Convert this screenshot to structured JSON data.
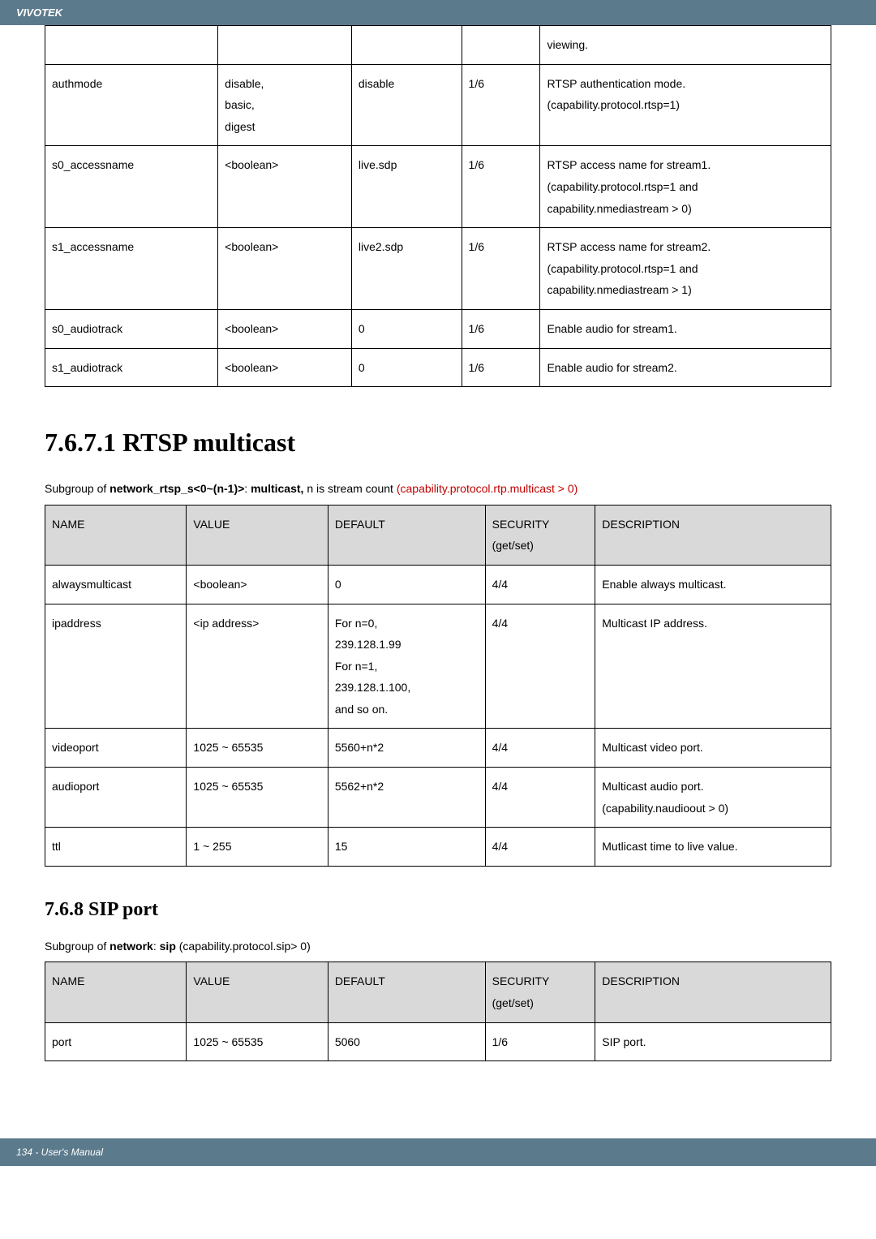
{
  "header": {
    "brand": "VIVOTEK"
  },
  "footer": {
    "text": "134 - User's Manual"
  },
  "table1": {
    "rows": [
      {
        "c1": "",
        "c2": "",
        "c3": "",
        "c4": "",
        "c5": "viewing."
      },
      {
        "c1": "authmode",
        "c2": "disable,\nbasic,\ndigest",
        "c3": "disable",
        "c4": "1/6",
        "c5": "RTSP authentication mode.\n(capability.protocol.rtsp=1)"
      },
      {
        "c1": "s0_accessname",
        "c2": "<boolean>",
        "c3": "live.sdp",
        "c4": "1/6",
        "c5": "RTSP access name for stream1.\n(capability.protocol.rtsp=1 and\ncapability.nmediastream > 0)"
      },
      {
        "c1": "s1_accessname",
        "c2": "<boolean>",
        "c3": "live2.sdp",
        "c4": "1/6",
        "c5": "RTSP access name for stream2.\n(capability.protocol.rtsp=1 and\ncapability.nmediastream > 1)"
      },
      {
        "c1": "s0_audiotrack",
        "c2": "<boolean>",
        "c3": "0",
        "c4": "1/6",
        "c5": "Enable audio for stream1."
      },
      {
        "c1": "s1_audiotrack",
        "c2": "<boolean>",
        "c3": "0",
        "c4": "1/6",
        "c5": "Enable audio for stream2."
      }
    ]
  },
  "section7671": {
    "heading": "7.6.7.1 RTSP multicast",
    "subgroup_pre": "Subgroup of ",
    "subgroup_bold": "network_rtsp_s<0~(n-1)>",
    "subgroup_mid": ": ",
    "subgroup_bold2": "multicast, ",
    "subgroup_post": "n is stream count ",
    "subgroup_red": "(capability.protocol.rtp.multicast > 0)"
  },
  "table2": {
    "headers": {
      "h1": "NAME",
      "h2": "VALUE",
      "h3": "DEFAULT",
      "h4": "SECURITY\n(get/set)",
      "h5": "DESCRIPTION"
    },
    "rows": [
      {
        "c1": "alwaysmulticast",
        "c2": "<boolean>",
        "c3": "0",
        "c4": "4/4",
        "c5": "Enable always multicast."
      },
      {
        "c1": "ipaddress",
        "c2": "<ip address>",
        "c3": "For n=0,\n239.128.1.99\nFor n=1,\n239.128.1.100,\nand so on.",
        "c4": "4/4",
        "c5": "Multicast IP address."
      },
      {
        "c1": "videoport",
        "c2": "1025 ~ 65535",
        "c3": "5560+n*2",
        "c4": "4/4",
        "c5": "Multicast video port."
      },
      {
        "c1": "audioport",
        "c2": "1025 ~ 65535",
        "c3": "5562+n*2",
        "c4": "4/4",
        "c5": "Multicast audio port.\n(capability.naudioout > 0)"
      },
      {
        "c1": "ttl",
        "c2": "1 ~ 255",
        "c3": "15",
        "c4": "4/4",
        "c5": "Mutlicast time to live value."
      }
    ]
  },
  "section768": {
    "heading": "7.6.8 SIP port",
    "subgroup_pre": "Subgroup of ",
    "subgroup_bold": "network",
    "subgroup_mid": ": ",
    "subgroup_bold2": "sip",
    "subgroup_post": " (capability.protocol.sip> 0)"
  },
  "table3": {
    "headers": {
      "h1": "NAME",
      "h2": "VALUE",
      "h3": "DEFAULT",
      "h4": "SECURITY\n(get/set)",
      "h5": "DESCRIPTION"
    },
    "rows": [
      {
        "c1": "port",
        "c2": "1025 ~ 65535",
        "c3": "5060",
        "c4": "1/6",
        "c5": "SIP port."
      }
    ]
  }
}
